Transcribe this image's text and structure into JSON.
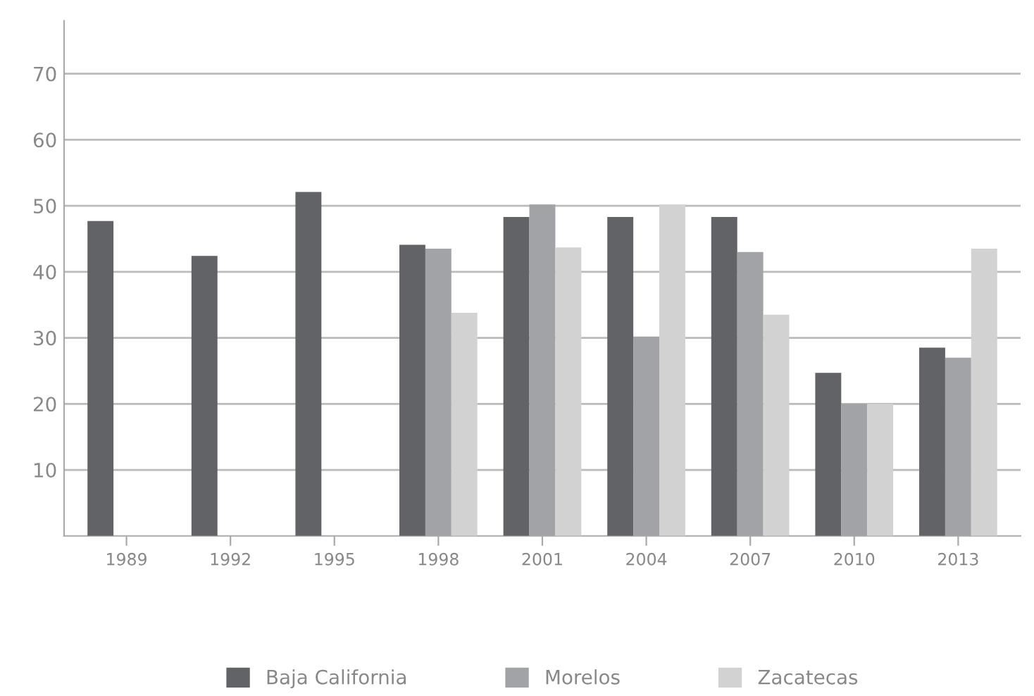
{
  "chart_data": {
    "type": "bar",
    "categories": [
      "1989",
      "1992",
      "1995",
      "1998",
      "2001",
      "2004",
      "2007",
      "2010",
      "2013"
    ],
    "series": [
      {
        "name": "Baja California",
        "color": "#626366",
        "values": [
          47.7,
          42.4,
          52.1,
          44.1,
          48.3,
          48.3,
          48.3,
          24.7,
          28.5
        ]
      },
      {
        "name": "Morelos",
        "color": "#a2a3a6",
        "values": [
          null,
          null,
          null,
          43.5,
          50.2,
          30.2,
          43.0,
          20.0,
          27.0
        ]
      },
      {
        "name": "Zacatecas",
        "color": "#d2d2d3",
        "values": [
          null,
          null,
          null,
          33.8,
          43.7,
          50.2,
          33.5,
          20.0,
          43.5
        ]
      }
    ],
    "ylim": [
      0,
      78
    ],
    "yticks": [
      10,
      20,
      30,
      40,
      50,
      60,
      70
    ],
    "grid": "y",
    "legend": "bottom"
  }
}
